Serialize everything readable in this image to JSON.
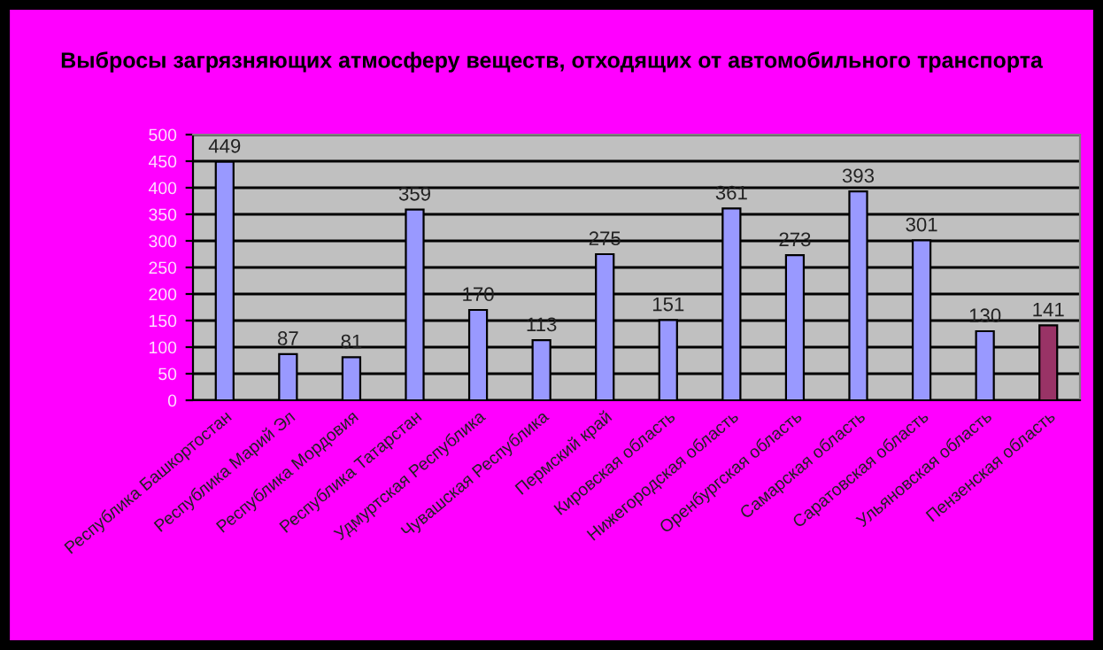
{
  "chart_data": {
    "type": "bar",
    "title": "Выбросы загрязняющих атмосферу веществ, отходящих от автомобильного транспорта",
    "categories": [
      "Республика Башкортостан",
      "Республика Марий Эл",
      "Республика Мордовия",
      "Республика Татарстан",
      "Удмуртская Республика",
      "Чувашская Республика",
      "Пермский край",
      "Кировская область",
      "Нижегородская область",
      "Оренбургская область",
      "Самарская область",
      "Саратовская область",
      "Ульяновская область",
      "Пензенская область"
    ],
    "values": [
      449,
      87,
      81,
      359,
      170,
      113,
      275,
      151,
      361,
      273,
      393,
      301,
      130,
      141
    ],
    "colors": [
      "#9999ff",
      "#9999ff",
      "#9999ff",
      "#9999ff",
      "#9999ff",
      "#9999ff",
      "#9999ff",
      "#9999ff",
      "#9999ff",
      "#9999ff",
      "#9999ff",
      "#9999ff",
      "#9999ff",
      "#993366"
    ],
    "data_labels": true,
    "ylim": [
      0,
      500
    ],
    "yticks": [
      0,
      50,
      100,
      150,
      200,
      250,
      300,
      350,
      400,
      450,
      500
    ],
    "grid": "y",
    "legend": false
  }
}
